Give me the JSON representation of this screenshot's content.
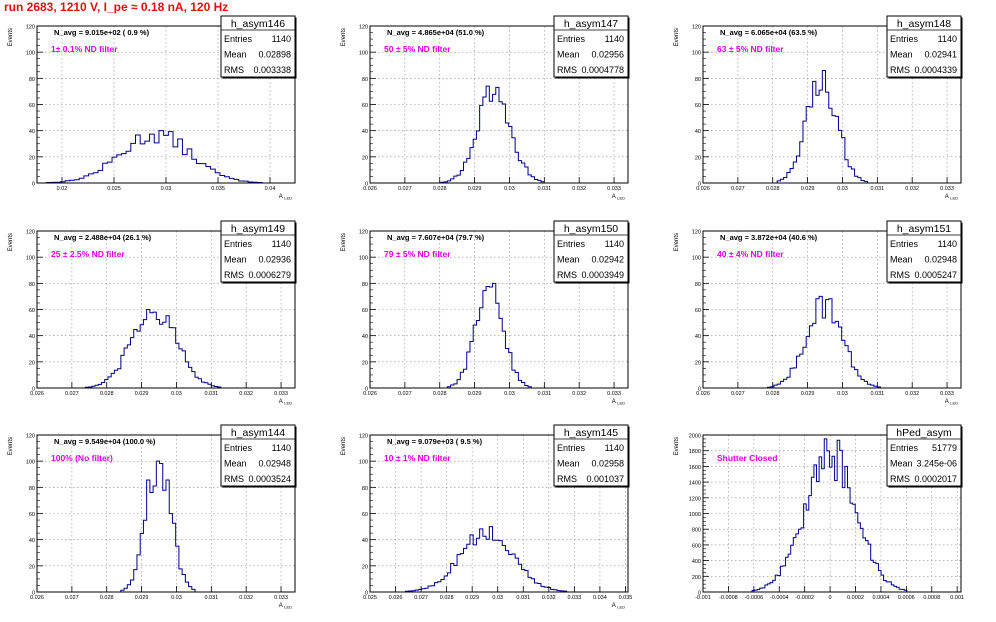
{
  "run_title": "run 2683,  1210 V, I_pe ≈ 0.18 nA, 120 Hz",
  "stats_labels": {
    "entries": "Entries",
    "mean": "Mean",
    "rms": "RMS"
  },
  "colors": {
    "title": "#e01010",
    "annotation": "#e000e0",
    "histogram": "#00008b",
    "frame": "#000000",
    "grid": "#8c8c8c"
  },
  "chart_data": [
    {
      "type": "bar",
      "name": "h_asym146",
      "ylabel": "Events",
      "xlabel": "A_LED",
      "navg": "N_avg = 9.015e+02 ( 0.9 %)",
      "filter": "1± 0.1% ND filter",
      "entries": "1140",
      "mean": "0.02898",
      "rms": "0.003338",
      "xlim": [
        0.0176,
        0.0424
      ],
      "ylim": [
        0,
        120
      ],
      "yticks": [
        0,
        20,
        40,
        60,
        80,
        100,
        120
      ],
      "xticks": [
        "0.02",
        "0.025",
        "0.03",
        "0.035",
        "0.04"
      ],
      "mu": 0.02898,
      "sigma": 0.003338,
      "peak": 40,
      "nbins": 55
    },
    {
      "type": "bar",
      "name": "h_asym147",
      "ylabel": "Events",
      "xlabel": "A_LED",
      "navg": "N_avg = 4.865e+04 (51.0 %)",
      "filter": "50 ± 5% ND filter",
      "entries": "1140",
      "mean": "0.02956",
      "rms": "0.0004778",
      "xlim": [
        0.026,
        0.0334
      ],
      "ylim": [
        0,
        120
      ],
      "yticks": [
        0,
        20,
        40,
        60,
        80,
        100,
        120
      ],
      "xticks": [
        "0.026",
        "0.027",
        "0.028",
        "0.029",
        "0.03",
        "0.031",
        "0.032",
        "0.033"
      ],
      "mu": 0.02956,
      "sigma": 0.0004778,
      "peak": 74,
      "nbins": 80
    },
    {
      "type": "bar",
      "name": "h_asym148",
      "ylabel": "Events",
      "xlabel": "A_LED",
      "navg": "N_avg = 6.065e+04 (63.5 %)",
      "filter": "63 ± 5% ND filter",
      "entries": "1140",
      "mean": "0.02941",
      "rms": "0.0004339",
      "xlim": [
        0.026,
        0.0334
      ],
      "ylim": [
        0,
        120
      ],
      "yticks": [
        0,
        20,
        40,
        60,
        80,
        100,
        120
      ],
      "xticks": [
        "0.026",
        "0.027",
        "0.028",
        "0.029",
        "0.03",
        "0.031",
        "0.032",
        "0.033"
      ],
      "mu": 0.02941,
      "sigma": 0.0004339,
      "peak": 86,
      "nbins": 80
    },
    {
      "type": "bar",
      "name": "h_asym149",
      "ylabel": "Events",
      "xlabel": "A_LED",
      "navg": "N_avg = 2.488e+04 (26.1 %)",
      "filter": "25 ± 2.5% ND filter",
      "entries": "1140",
      "mean": "0.02936",
      "rms": "0.0006279",
      "xlim": [
        0.026,
        0.0334
      ],
      "ylim": [
        0,
        120
      ],
      "yticks": [
        0,
        20,
        40,
        60,
        80,
        100,
        120
      ],
      "xticks": [
        "0.026",
        "0.027",
        "0.028",
        "0.029",
        "0.03",
        "0.031",
        "0.032",
        "0.033"
      ],
      "mu": 0.02936,
      "sigma": 0.0006279,
      "peak": 60,
      "nbins": 80
    },
    {
      "type": "bar",
      "name": "h_asym150",
      "ylabel": "Events",
      "xlabel": "A_LED",
      "navg": "N_avg = 7.607e+04 (79.7 %)",
      "filter": "79 ± 5% ND filter",
      "entries": "1140",
      "mean": "0.02942",
      "rms": "0.0003949",
      "xlim": [
        0.026,
        0.0334
      ],
      "ylim": [
        0,
        120
      ],
      "yticks": [
        0,
        20,
        40,
        60,
        80,
        100,
        120
      ],
      "xticks": [
        "0.026",
        "0.027",
        "0.028",
        "0.029",
        "0.03",
        "0.031",
        "0.032",
        "0.033"
      ],
      "mu": 0.02942,
      "sigma": 0.0003949,
      "peak": 80,
      "nbins": 80
    },
    {
      "type": "bar",
      "name": "h_asym151",
      "ylabel": "Events",
      "xlabel": "A_LED",
      "navg": "N_avg = 3.872e+04 (40.6 %)",
      "filter": "40 ± 4% ND filter",
      "entries": "1140",
      "mean": "0.02948",
      "rms": "0.0005247",
      "xlim": [
        0.026,
        0.0334
      ],
      "ylim": [
        0,
        120
      ],
      "yticks": [
        0,
        20,
        40,
        60,
        80,
        100,
        120
      ],
      "xticks": [
        "0.026",
        "0.027",
        "0.028",
        "0.029",
        "0.03",
        "0.031",
        "0.032",
        "0.033"
      ],
      "mu": 0.02948,
      "sigma": 0.0005247,
      "peak": 70,
      "nbins": 80
    },
    {
      "type": "bar",
      "name": "h_asym144",
      "ylabel": "Events",
      "xlabel": "A_LED",
      "navg": "N_avg = 9.549e+04 (100.0 %)",
      "filter": "100% (No filter)",
      "entries": "1140",
      "mean": "0.02948",
      "rms": "0.0003524",
      "xlim": [
        0.026,
        0.0334
      ],
      "ylim": [
        0,
        120
      ],
      "yticks": [
        0,
        20,
        40,
        60,
        80,
        100,
        120
      ],
      "xticks": [
        "0.026",
        "0.027",
        "0.028",
        "0.029",
        "0.03",
        "0.031",
        "0.032",
        "0.033"
      ],
      "mu": 0.02948,
      "sigma": 0.0003524,
      "peak": 100,
      "nbins": 80
    },
    {
      "type": "bar",
      "name": "h_asym145",
      "ylabel": "Events",
      "xlabel": "A_LED",
      "navg": "N_avg = 9.079e+03 ( 9.5 %)",
      "filter": "10 ± 1% ND filter",
      "entries": "1140",
      "mean": "0.02958",
      "rms": "0.001037",
      "xlim": [
        0.025,
        0.0351
      ],
      "ylim": [
        0,
        120
      ],
      "yticks": [
        0,
        20,
        40,
        60,
        80,
        100,
        120
      ],
      "xticks": [
        "0.025",
        "0.026",
        "0.027",
        "0.028",
        "0.029",
        "0.03",
        "0.031",
        "0.032",
        "0.033",
        "0.034",
        "0.035"
      ],
      "mu": 0.02958,
      "sigma": 0.001037,
      "peak": 50,
      "nbins": 80
    },
    {
      "type": "bar",
      "name": "hPed_asym",
      "ylabel": "Events",
      "xlabel": "",
      "navg": "",
      "filter": "Shutter Closed",
      "entries": "51779",
      "mean": "3.245e-06",
      "rms": "0.0002017",
      "xlim": [
        -0.001,
        0.00103
      ],
      "ylim": [
        0,
        2000
      ],
      "yticks": [
        0,
        200,
        400,
        600,
        800,
        1000,
        1200,
        1400,
        1600,
        1800,
        2000
      ],
      "xticks": [
        "-0.001",
        "-0.0008",
        "-0.0006",
        "-0.0004",
        "-0.0002",
        "0",
        "0.0002",
        "0.0004",
        "0.0006",
        "0.0008",
        "0.001"
      ],
      "mu": 0.0,
      "sigma": 0.0002017,
      "peak": 1950,
      "nbins": 100
    }
  ]
}
